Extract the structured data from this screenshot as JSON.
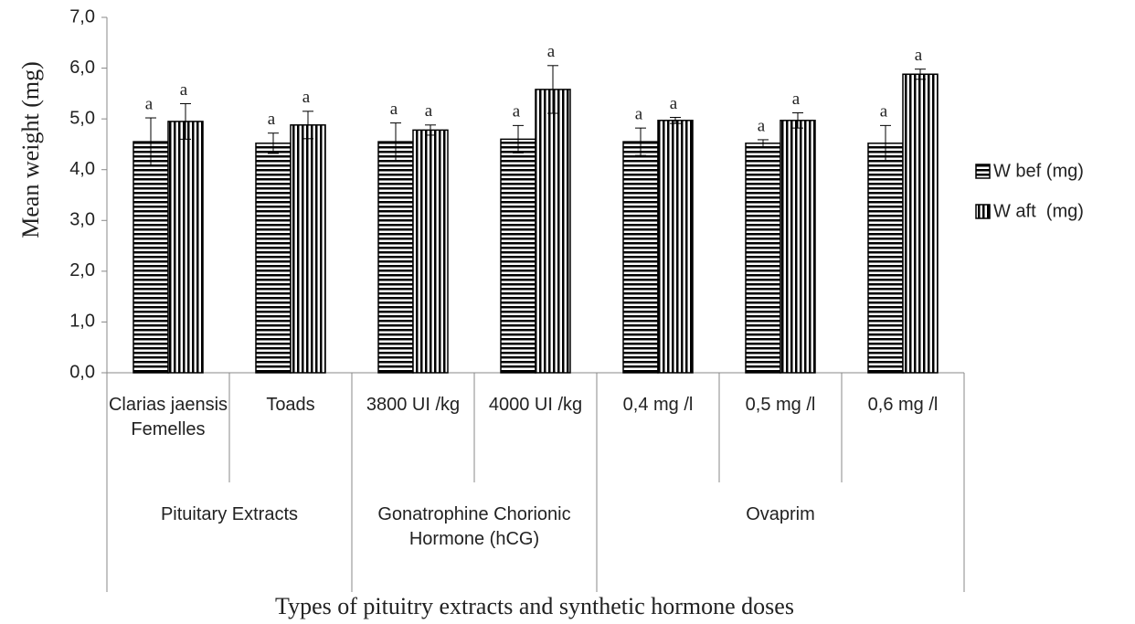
{
  "chart_data": {
    "type": "bar",
    "ylabel": "Mean weight (mg)",
    "xlabel": "Types of pituitry extracts and synthetic hormone doses",
    "categories": [
      "Clarias jaensis Femelles",
      "Toads",
      "3800 UI /kg",
      "4000 UI /kg",
      "0,4 mg /l",
      "0,5 mg /l",
      "0,6 mg /l"
    ],
    "groups": [
      {
        "label": "Pituitary Extracts",
        "span": 2
      },
      {
        "label": "Gonatrophine Chorionic Hormone (hCG)",
        "span": 2
      },
      {
        "label": "Ovaprim",
        "span": 3
      }
    ],
    "series": [
      {
        "name": "W bef (mg)",
        "pattern": "horizontal",
        "color": "#000000",
        "values": [
          4.55,
          4.52,
          4.55,
          4.6,
          4.55,
          4.52,
          4.52
        ],
        "errors": [
          0.47,
          0.2,
          0.37,
          0.27,
          0.27,
          0.07,
          0.35
        ],
        "labels": [
          "a",
          "a",
          "a",
          "a",
          "a",
          "a",
          "a"
        ]
      },
      {
        "name": "W aft  (mg)",
        "pattern": "vertical",
        "color": "#000000",
        "values": [
          4.95,
          4.88,
          4.78,
          5.58,
          4.97,
          4.97,
          5.88
        ],
        "errors": [
          0.35,
          0.27,
          0.1,
          0.47,
          0.06,
          0.15,
          0.1
        ],
        "labels": [
          "a",
          "a",
          "a",
          "a",
          "a",
          "a",
          "a"
        ]
      }
    ],
    "ylim": [
      0,
      7
    ],
    "yticks": [
      {
        "value": 0,
        "label": "0,0"
      },
      {
        "value": 1,
        "label": "1,0"
      },
      {
        "value": 2,
        "label": "2,0"
      },
      {
        "value": 3,
        "label": "3,0"
      },
      {
        "value": 4,
        "label": "4,0"
      },
      {
        "value": 5,
        "label": "5,0"
      },
      {
        "value": 6,
        "label": "6,0"
      },
      {
        "value": 7,
        "label": "7,0"
      }
    ],
    "legend": "right"
  }
}
